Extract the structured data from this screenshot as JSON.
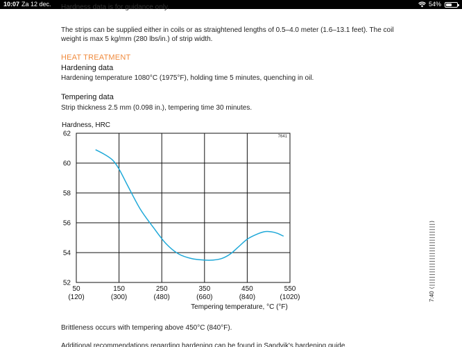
{
  "status_bar": {
    "time": "10:07",
    "date": "Za 12 dec.",
    "battery": "54%",
    "battery_level": 0.54
  },
  "document": {
    "cut_line": "Hardness data is for guidance only.",
    "strips_paragraph": "The strips can be supplied either in coils or as straightened lengths of 0.5–4.0 meter (1.6–13.1 feet). The coil weight is max 5 kg/mm (280 lbs/in.) of strip width.",
    "heat_treatment_heading": "HEAT TREATMENT",
    "hardening_heading": "Hardening data",
    "hardening_text": "Hardening temperature 1080°C (1975°F), holding time 5 minutes, quenching in oil.",
    "tempering_heading": "Tempering data",
    "tempering_text": "Strip thickness 2.5 mm (0.098 in.), tempering time 30 minutes.",
    "brittleness_text": "Brittleness occurs with tempering above 450°C (840°F).",
    "bottom_cut_line": "Additional recommendations regarding hardening can be found in Sandvik's hardening guide."
  },
  "edge_text": {
    "left": "7:40",
    "barcode": "(||||||||||||||||||||||||)"
  },
  "chart_data": {
    "type": "line",
    "title": "Hardness, HRC",
    "figure_id": "7641",
    "xlabel": "Tempering temperature, °C (°F)",
    "ylabel": "Hardness, HRC",
    "xlim": [
      50,
      550
    ],
    "ylim": [
      52,
      62
    ],
    "x_ticks": [
      {
        "value": 50,
        "label": "50",
        "sublabel": "(120)"
      },
      {
        "value": 150,
        "label": "150",
        "sublabel": "(300)"
      },
      {
        "value": 250,
        "label": "250",
        "sublabel": "(480)"
      },
      {
        "value": 350,
        "label": "350",
        "sublabel": "(660)"
      },
      {
        "value": 450,
        "label": "450",
        "sublabel": "(840)"
      },
      {
        "value": 550,
        "label": "550",
        "sublabel": "(1020)"
      }
    ],
    "y_ticks": [
      52,
      54,
      56,
      58,
      60,
      62
    ],
    "grid": true,
    "line_color": "#1ea8d8",
    "series": [
      {
        "x": [
          95,
          115,
          135,
          150,
          170,
          200,
          230,
          260,
          290,
          320,
          350,
          370,
          390,
          410,
          430,
          450,
          470,
          490,
          505,
          520,
          535
        ],
        "y": [
          60.9,
          60.6,
          60.2,
          59.6,
          58.5,
          56.9,
          55.7,
          54.6,
          53.9,
          53.6,
          53.5,
          53.5,
          53.6,
          53.9,
          54.4,
          54.9,
          55.2,
          55.4,
          55.4,
          55.3,
          55.1
        ]
      }
    ]
  }
}
